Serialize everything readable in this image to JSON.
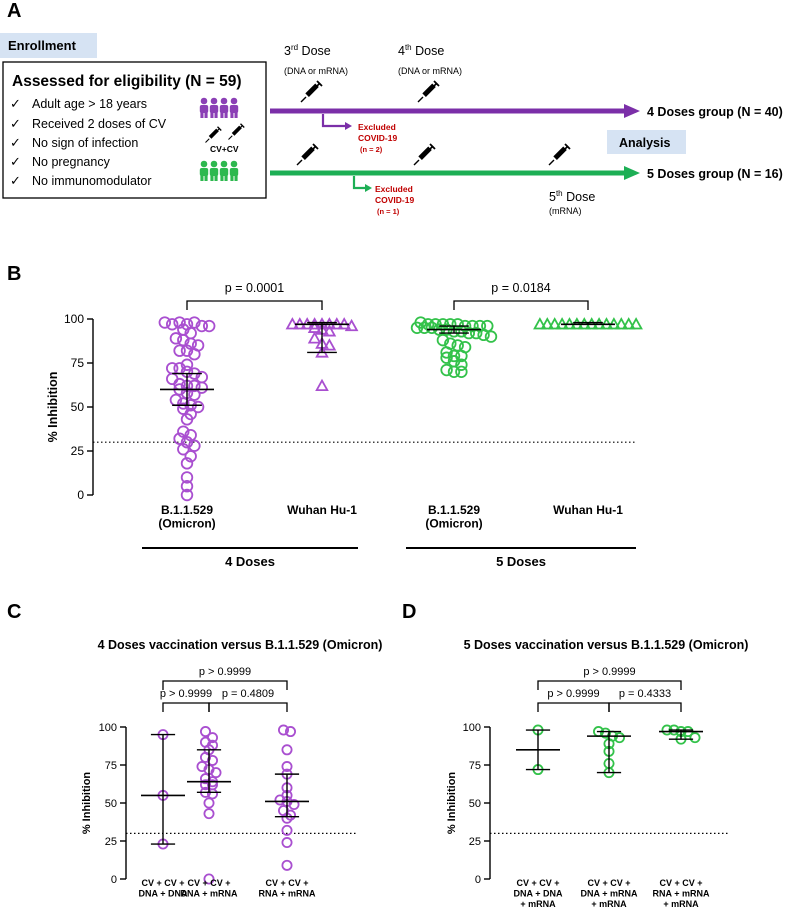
{
  "panel_labels": {
    "a": "A",
    "b": "B",
    "c": "C",
    "d": "D"
  },
  "colors": {
    "purple": "#7B2FA8",
    "marker_purple": "#A94FD0",
    "green": "#1DAF55",
    "marker_green": "#33C24A",
    "red": "#C00000",
    "badge": "#D6E3F3"
  },
  "panel_a": {
    "enrollment_label": "Enrollment",
    "analysis_label": "Analysis",
    "eligibility_title": "Assessed for eligibility (N = 59)",
    "criteria": [
      "Adult age > 18 years",
      "Received 2 doses of CV",
      "No sign of infection",
      "No pregnancy",
      "No immunomodulator"
    ],
    "cv_label": "CV+CV",
    "dose3": {
      "base": "3",
      "sup": "rd",
      "word": " Dose",
      "sub": "(DNA or mRNA)"
    },
    "dose4": {
      "base": "4",
      "sup": "th",
      "word": " Dose",
      "sub": "(DNA or mRNA)"
    },
    "dose5": {
      "base": "5",
      "sup": "th",
      "word": " Dose",
      "sub": "(mRNA)"
    },
    "excluded_top": {
      "line1": "Excluded",
      "line2": "COVID-19",
      "line3": "(n = 2)"
    },
    "excluded_bottom": {
      "line1": "Excluded",
      "line2": "COVID-19",
      "line3": "(n = 1)"
    },
    "group4": "4 Doses group (N = 40)",
    "group5": "5 Doses group (N = 16)",
    "icons": [
      "syringe-icon",
      "person-icon",
      "check-icon",
      "arrow-icon"
    ]
  },
  "chart_data": [
    {
      "id": "B",
      "type": "scatter",
      "ylabel": "% Inhibition",
      "ylim": [
        0,
        100
      ],
      "yticks": [
        0,
        25,
        50,
        75,
        100
      ],
      "threshold": 30,
      "categories": [
        "B.1.1.529\n(Omicron)",
        "Wuhan Hu-1",
        "B.1.1.529\n(Omicron)",
        "Wuhan Hu-1"
      ],
      "groups": [
        {
          "label": "4 Doses",
          "categories": [
            0,
            1
          ]
        },
        {
          "label": "5 Doses",
          "categories": [
            2,
            3
          ]
        }
      ],
      "comparisons": [
        {
          "from": 0,
          "to": 1,
          "label": "p = 0.0001"
        },
        {
          "from": 2,
          "to": 3,
          "label": "p = 0.0184"
        }
      ],
      "series": [
        {
          "name": "4 Doses B.1.1.529 (Omicron)",
          "marker": "circle",
          "color": "purple",
          "median": 60,
          "q1": 51,
          "q3": 69,
          "values": [
            98,
            97,
            98,
            97,
            98,
            96,
            96,
            94,
            92,
            89,
            88,
            86,
            85,
            82,
            82,
            80,
            74,
            72,
            72,
            70,
            69,
            67,
            66,
            63,
            62,
            62,
            61,
            60,
            58,
            57,
            54,
            52,
            51,
            50,
            49,
            46,
            43,
            36,
            34,
            32,
            30,
            28,
            26,
            22,
            18,
            10,
            5,
            0
          ]
        },
        {
          "name": "4 Doses Wuhan Hu-1",
          "marker": "triangle",
          "color": "purple",
          "median": 97,
          "q1": 81,
          "q3": 98,
          "values": [
            97,
            97,
            97,
            97,
            97,
            97,
            97,
            97,
            96,
            95,
            94,
            93,
            89,
            86,
            85,
            81,
            62
          ]
        },
        {
          "name": "5 Doses B.1.1.529 (Omicron)",
          "marker": "circle",
          "color": "green",
          "median": 94,
          "q1": 92,
          "q3": 96,
          "values": [
            98,
            97,
            97,
            97,
            97,
            97,
            96,
            96,
            96,
            96,
            95,
            95,
            95,
            94,
            94,
            93,
            93,
            92,
            92,
            91,
            90,
            88,
            86,
            85,
            84,
            81,
            79,
            79,
            78,
            76,
            74,
            71,
            70,
            70
          ]
        },
        {
          "name": "5 Doses Wuhan Hu-1",
          "marker": "triangle",
          "color": "green",
          "median": 97,
          "q1": 97,
          "q3": 98,
          "values": [
            97,
            97,
            97,
            97,
            97,
            97,
            97,
            97,
            97,
            97,
            97,
            97,
            97,
            97
          ]
        }
      ]
    },
    {
      "id": "C",
      "type": "scatter",
      "title": "4 Doses vaccination versus B.1.1.529 (Omicron)",
      "ylabel": "% Inhibition",
      "ylim": [
        0,
        100
      ],
      "yticks": [
        0,
        25,
        50,
        75,
        100
      ],
      "threshold": 30,
      "categories": [
        "CV + CV +\nDNA + DNA",
        "CV + CV +\nDNA + mRNA",
        "CV + CV +\nRNA + mRNA"
      ],
      "comparisons": [
        {
          "from": 0,
          "to": 1,
          "label": "p > 0.9999"
        },
        {
          "from": 1,
          "to": 2,
          "label": "p = 0.4809"
        },
        {
          "from": 0,
          "to": 2,
          "label": "p > 0.9999"
        }
      ],
      "series": [
        {
          "name": "CV + CV + DNA + DNA",
          "marker": "circle",
          "color": "purple",
          "median": 55,
          "q1": 23,
          "q3": 95,
          "values": [
            95,
            55,
            23
          ]
        },
        {
          "name": "CV + CV + DNA + mRNA",
          "marker": "circle",
          "color": "purple",
          "median": 64,
          "q1": 57,
          "q3": 85,
          "values": [
            97,
            93,
            90,
            88,
            85,
            80,
            78,
            74,
            72,
            70,
            66,
            64,
            62,
            62,
            57,
            56,
            50,
            43,
            0
          ]
        },
        {
          "name": "CV + CV + RNA + mRNA",
          "marker": "circle",
          "color": "purple",
          "median": 51,
          "q1": 41,
          "q3": 69,
          "values": [
            98,
            97,
            85,
            74,
            69,
            60,
            55,
            52,
            51,
            49,
            45,
            42,
            40,
            32,
            24,
            9
          ]
        }
      ]
    },
    {
      "id": "D",
      "type": "scatter",
      "title": "5 Doses vaccination versus B.1.1.529 (Omicron)",
      "ylabel": "% Inhibition",
      "ylim": [
        0,
        100
      ],
      "yticks": [
        0,
        25,
        50,
        75,
        100
      ],
      "threshold": 30,
      "categories": [
        "CV + CV +\nDNA + DNA\n+ mRNA",
        "CV + CV +\nDNA + mRNA\n+ mRNA",
        "CV + CV +\nRNA + mRNA\n+ mRNA"
      ],
      "comparisons": [
        {
          "from": 0,
          "to": 1,
          "label": "p > 0.9999"
        },
        {
          "from": 1,
          "to": 2,
          "label": "p = 0.4333"
        },
        {
          "from": 0,
          "to": 2,
          "label": "p > 0.9999"
        }
      ],
      "series": [
        {
          "name": "CV + CV + DNA + DNA + mRNA",
          "marker": "circle",
          "color": "green",
          "median": 85,
          "q1": 72,
          "q3": 98,
          "values": [
            98,
            72
          ]
        },
        {
          "name": "CV + CV + DNA + mRNA + mRNA",
          "marker": "circle",
          "color": "green",
          "median": 94,
          "q1": 70,
          "q3": 97,
          "values": [
            97,
            96,
            94,
            93,
            89,
            84,
            76,
            70
          ]
        },
        {
          "name": "CV + CV + RNA + mRNA + mRNA",
          "marker": "circle",
          "color": "green",
          "median": 97,
          "q1": 92,
          "q3": 98,
          "values": [
            98,
            98,
            97,
            97,
            93,
            92
          ]
        }
      ]
    }
  ]
}
